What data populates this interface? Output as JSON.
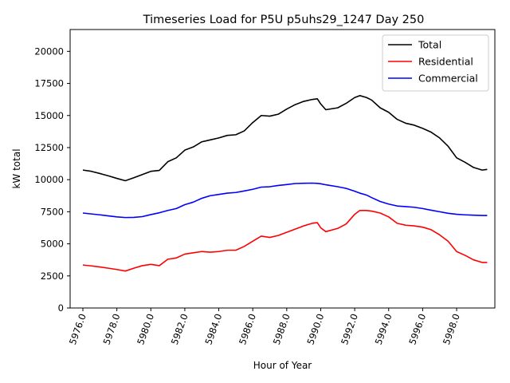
{
  "chart_data": {
    "type": "line",
    "title": "Timeseries Load for P5U p5uhs29_1247  Day 250",
    "xlabel": "Hour of Year",
    "ylabel": "kW total",
    "xlim": [
      5975.25,
      6000.25
    ],
    "ylim": [
      0,
      21700
    ],
    "xticks": [
      5976,
      5978,
      5980,
      5982,
      5984,
      5986,
      5988,
      5990,
      5992,
      5994,
      5996,
      5998
    ],
    "xtick_labels": [
      "5976.0",
      "5978.0",
      "5980.0",
      "5982.0",
      "5984.0",
      "5986.0",
      "5988.0",
      "5990.0",
      "5992.0",
      "5994.0",
      "5996.0",
      "5998.0"
    ],
    "yticks": [
      0,
      2500,
      5000,
      7500,
      10000,
      12500,
      15000,
      17500,
      20000
    ],
    "ytick_labels": [
      "0",
      "2500",
      "5000",
      "7500",
      "10000",
      "12500",
      "15000",
      "17500",
      "20000"
    ],
    "grid": false,
    "legend_position": "top-right",
    "series": [
      {
        "name": "Total",
        "color": "#000000",
        "points": [
          [
            5976.0,
            10750
          ],
          [
            5976.5,
            10650
          ],
          [
            5977.0,
            10480
          ],
          [
            5977.5,
            10300
          ],
          [
            5978.0,
            10100
          ],
          [
            5978.5,
            9920
          ],
          [
            5979.0,
            10150
          ],
          [
            5979.5,
            10400
          ],
          [
            5980.0,
            10650
          ],
          [
            5980.5,
            10720
          ],
          [
            5981.0,
            11400
          ],
          [
            5981.5,
            11700
          ],
          [
            5982.0,
            12300
          ],
          [
            5982.5,
            12550
          ],
          [
            5983.0,
            12950
          ],
          [
            5983.5,
            13100
          ],
          [
            5984.0,
            13250
          ],
          [
            5984.5,
            13450
          ],
          [
            5985.0,
            13500
          ],
          [
            5985.5,
            13800
          ],
          [
            5986.0,
            14450
          ],
          [
            5986.5,
            15000
          ],
          [
            5987.0,
            14950
          ],
          [
            5987.5,
            15100
          ],
          [
            5988.0,
            15500
          ],
          [
            5988.5,
            15850
          ],
          [
            5989.0,
            16100
          ],
          [
            5989.5,
            16250
          ],
          [
            5989.8,
            16300
          ],
          [
            5990.0,
            15900
          ],
          [
            5990.3,
            15450
          ],
          [
            5991.0,
            15600
          ],
          [
            5991.5,
            15950
          ],
          [
            5992.0,
            16400
          ],
          [
            5992.3,
            16550
          ],
          [
            5992.7,
            16400
          ],
          [
            5993.0,
            16200
          ],
          [
            5993.5,
            15600
          ],
          [
            5994.0,
            15250
          ],
          [
            5994.5,
            14700
          ],
          [
            5995.0,
            14400
          ],
          [
            5995.5,
            14250
          ],
          [
            5996.0,
            14000
          ],
          [
            5996.5,
            13700
          ],
          [
            5997.0,
            13250
          ],
          [
            5997.5,
            12600
          ],
          [
            5998.0,
            11700
          ],
          [
            5998.5,
            11350
          ],
          [
            5999.0,
            10950
          ],
          [
            5999.5,
            10750
          ],
          [
            5999.8,
            10800
          ]
        ]
      },
      {
        "name": "Residential",
        "color": "#ff0000",
        "points": [
          [
            5976.0,
            3350
          ],
          [
            5976.5,
            3280
          ],
          [
            5977.0,
            3200
          ],
          [
            5977.5,
            3100
          ],
          [
            5978.0,
            3000
          ],
          [
            5978.5,
            2880
          ],
          [
            5979.0,
            3100
          ],
          [
            5979.5,
            3300
          ],
          [
            5980.0,
            3400
          ],
          [
            5980.5,
            3300
          ],
          [
            5981.0,
            3800
          ],
          [
            5981.5,
            3900
          ],
          [
            5982.0,
            4200
          ],
          [
            5982.5,
            4300
          ],
          [
            5983.0,
            4400
          ],
          [
            5983.5,
            4350
          ],
          [
            5984.0,
            4400
          ],
          [
            5984.5,
            4500
          ],
          [
            5985.0,
            4500
          ],
          [
            5985.5,
            4800
          ],
          [
            5986.0,
            5200
          ],
          [
            5986.5,
            5600
          ],
          [
            5987.0,
            5500
          ],
          [
            5987.5,
            5650
          ],
          [
            5988.0,
            5900
          ],
          [
            5988.5,
            6150
          ],
          [
            5989.0,
            6400
          ],
          [
            5989.5,
            6600
          ],
          [
            5989.8,
            6650
          ],
          [
            5990.0,
            6250
          ],
          [
            5990.3,
            5950
          ],
          [
            5991.0,
            6200
          ],
          [
            5991.5,
            6550
          ],
          [
            5992.0,
            7300
          ],
          [
            5992.3,
            7600
          ],
          [
            5992.7,
            7600
          ],
          [
            5993.0,
            7550
          ],
          [
            5993.5,
            7400
          ],
          [
            5994.0,
            7100
          ],
          [
            5994.5,
            6600
          ],
          [
            5995.0,
            6450
          ],
          [
            5995.5,
            6400
          ],
          [
            5996.0,
            6300
          ],
          [
            5996.5,
            6100
          ],
          [
            5997.0,
            5700
          ],
          [
            5997.5,
            5200
          ],
          [
            5998.0,
            4400
          ],
          [
            5998.5,
            4100
          ],
          [
            5999.0,
            3750
          ],
          [
            5999.5,
            3550
          ],
          [
            5999.8,
            3550
          ]
        ]
      },
      {
        "name": "Commercial",
        "color": "#0000ff",
        "points": [
          [
            5976.0,
            7400
          ],
          [
            5976.5,
            7330
          ],
          [
            5977.0,
            7260
          ],
          [
            5977.5,
            7180
          ],
          [
            5978.0,
            7100
          ],
          [
            5978.5,
            7050
          ],
          [
            5979.0,
            7060
          ],
          [
            5979.5,
            7120
          ],
          [
            5980.0,
            7280
          ],
          [
            5980.5,
            7420
          ],
          [
            5981.0,
            7600
          ],
          [
            5981.5,
            7750
          ],
          [
            5982.0,
            8050
          ],
          [
            5982.5,
            8250
          ],
          [
            5983.0,
            8550
          ],
          [
            5983.5,
            8750
          ],
          [
            5984.0,
            8850
          ],
          [
            5984.5,
            8950
          ],
          [
            5985.0,
            9000
          ],
          [
            5985.5,
            9120
          ],
          [
            5986.0,
            9250
          ],
          [
            5986.5,
            9420
          ],
          [
            5987.0,
            9450
          ],
          [
            5987.5,
            9550
          ],
          [
            5988.0,
            9620
          ],
          [
            5988.5,
            9700
          ],
          [
            5989.0,
            9720
          ],
          [
            5989.5,
            9730
          ],
          [
            5989.8,
            9710
          ],
          [
            5990.0,
            9680
          ],
          [
            5990.3,
            9600
          ],
          [
            5991.0,
            9450
          ],
          [
            5991.5,
            9320
          ],
          [
            5992.0,
            9100
          ],
          [
            5992.3,
            8950
          ],
          [
            5992.7,
            8800
          ],
          [
            5993.0,
            8600
          ],
          [
            5993.5,
            8300
          ],
          [
            5994.0,
            8100
          ],
          [
            5994.5,
            7950
          ],
          [
            5995.0,
            7900
          ],
          [
            5995.5,
            7850
          ],
          [
            5996.0,
            7750
          ],
          [
            5996.5,
            7620
          ],
          [
            5997.0,
            7500
          ],
          [
            5997.5,
            7380
          ],
          [
            5998.0,
            7300
          ],
          [
            5998.5,
            7260
          ],
          [
            5999.0,
            7230
          ],
          [
            5999.5,
            7210
          ],
          [
            5999.8,
            7210
          ]
        ]
      }
    ]
  }
}
